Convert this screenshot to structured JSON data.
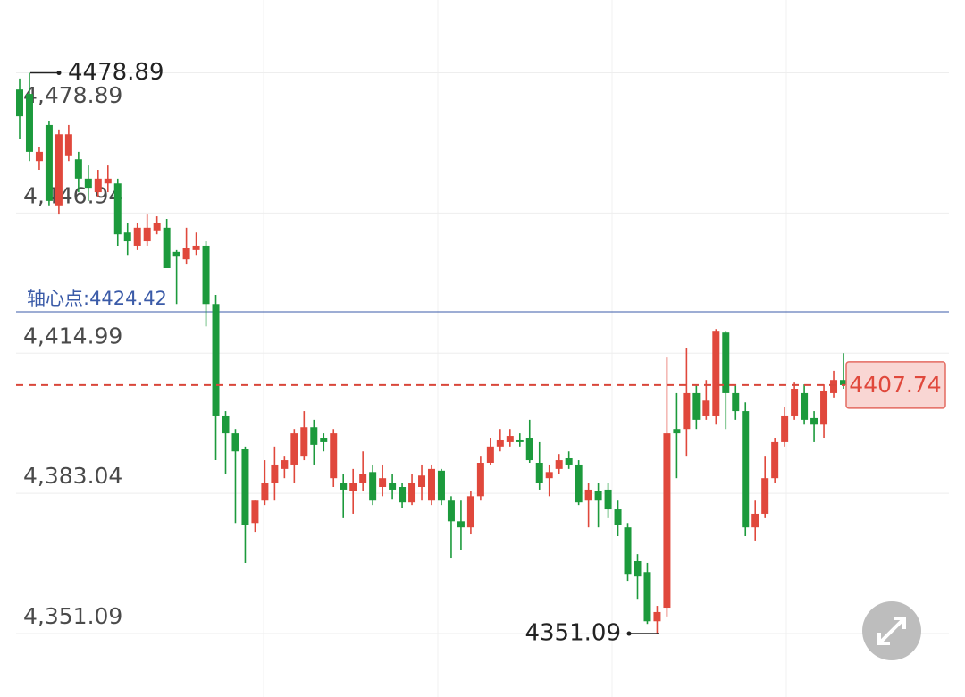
{
  "chart_data": {
    "type": "candlestick",
    "up_color": "#e0483c",
    "down_color": "#1c9a3c",
    "ylim": [
      4336.64,
      4495.5
    ],
    "yticks": [
      {
        "value": 4478.89,
        "label": "4,478.89"
      },
      {
        "value": 4446.94,
        "label": "4,446.94"
      },
      {
        "value": 4414.99,
        "label": "4,414.99"
      },
      {
        "value": 4383.04,
        "label": "4,383.04"
      },
      {
        "value": 4351.09,
        "label": "4,351.09"
      }
    ],
    "grid": true,
    "high": 4478.89,
    "low": 4351.09,
    "last": 4407.74,
    "pivot": {
      "value": 4424.42,
      "label": "轴心点:4424.42"
    },
    "series": {
      "open": [
        4475.1,
        4474.1,
        4458.8,
        4467.0,
        4448.7,
        4459.9,
        4459.2,
        4454.8,
        4451.7,
        4453.7,
        4453.7,
        4442.5,
        4439.5,
        4440.5,
        4443.0,
        4443.6,
        4438.1,
        4436.4,
        4438.5,
        4439.5,
        4426.2,
        4400.8,
        4396.7,
        4393.2,
        4376.3,
        4381.4,
        4385.5,
        4388.6,
        4389.6,
        4391.6,
        4398.1,
        4395.7,
        4386.5,
        4385.5,
        4383.5,
        4385.5,
        4387.9,
        4384.5,
        4385.5,
        4384.5,
        4381.0,
        4384.5,
        4381.4,
        4388.2,
        4381.4,
        4376.7,
        4375.3,
        4382.4,
        4390.0,
        4393.7,
        4394.7,
        4395.3,
        4395.7,
        4390.0,
        4386.5,
        4388.6,
        4391.2,
        4389.6,
        4381.4,
        4383.5,
        4383.9,
        4379.4,
        4375.3,
        4367.6,
        4365.1,
        4353.9,
        4357.0,
        4397.7,
        4397.7,
        4405.9,
        4400.8,
        4400.8,
        4419.7,
        4405.9,
        4401.8,
        4375.3,
        4378.4,
        4386.5,
        4394.7,
        4400.8,
        4405.9,
        4400.2,
        4398.7,
        4405.9,
        4408.9
      ],
      "high": [
        4477.6,
        4478.89,
        4461.9,
        4468.0,
        4466.0,
        4467.0,
        4460.9,
        4457.8,
        4456.8,
        4457.8,
        4454.8,
        4444.6,
        4444.6,
        4446.6,
        4446.2,
        4445.6,
        4438.5,
        4443.6,
        4442.5,
        4440.5,
        4428.3,
        4401.8,
        4397.7,
        4393.7,
        4381.4,
        4390.6,
        4393.7,
        4391.6,
        4397.7,
        4401.8,
        4399.8,
        4396.7,
        4397.7,
        4387.5,
        4388.6,
        4392.6,
        4389.6,
        4389.6,
        4387.5,
        4385.5,
        4387.5,
        4389.6,
        4389.6,
        4388.6,
        4382.4,
        4381.4,
        4383.5,
        4391.6,
        4395.7,
        4397.7,
        4397.7,
        4396.7,
        4399.8,
        4394.7,
        4389.6,
        4392.0,
        4392.6,
        4390.6,
        4385.5,
        4385.5,
        4385.5,
        4381.4,
        4376.3,
        4369.2,
        4367.2,
        4357.4,
        4414.0,
        4405.9,
        4416.1,
        4407.9,
        4408.9,
        4420.5,
        4420.1,
        4407.9,
        4403.8,
        4381.4,
        4391.6,
        4395.7,
        4402.8,
        4408.3,
        4407.9,
        4401.8,
        4407.9,
        4411.0,
        4415.0
      ],
      "low": [
        4463.9,
        4458.8,
        4456.8,
        4448.7,
        4446.6,
        4458.8,
        4451.7,
        4449.7,
        4450.7,
        4451.7,
        4439.5,
        4437.4,
        4438.5,
        4439.5,
        4442.1,
        4434.4,
        4426.2,
        4435.4,
        4437.4,
        4421.1,
        4390.6,
        4387.5,
        4376.3,
        4367.2,
        4374.3,
        4380.4,
        4381.4,
        4386.5,
        4385.5,
        4390.6,
        4389.6,
        4392.6,
        4384.5,
        4377.4,
        4378.4,
        4383.5,
        4380.4,
        4382.4,
        4381.8,
        4379.8,
        4380.4,
        4381.4,
        4380.4,
        4380.4,
        4368.2,
        4370.2,
        4373.7,
        4381.4,
        4389.6,
        4392.6,
        4393.7,
        4393.7,
        4390.0,
        4383.9,
        4382.4,
        4387.5,
        4388.6,
        4380.4,
        4375.3,
        4375.3,
        4377.4,
        4373.3,
        4363.1,
        4359.0,
        4353.3,
        4351.09,
        4355.0,
        4386.5,
        4391.6,
        4397.7,
        4399.8,
        4398.7,
        4397.7,
        4399.8,
        4373.3,
        4372.3,
        4377.4,
        4385.5,
        4393.7,
        4399.8,
        4398.7,
        4394.7,
        4395.7,
        4404.9,
        4406.9
      ],
      "close": [
        4469.0,
        4460.9,
        4460.9,
        4449.7,
        4464.9,
        4464.9,
        4454.8,
        4452.7,
        4454.8,
        4454.8,
        4442.1,
        4440.5,
        4443.6,
        4443.6,
        4444.6,
        4434.4,
        4437.0,
        4438.9,
        4439.5,
        4426.2,
        4400.8,
        4396.7,
        4392.6,
        4375.9,
        4381.4,
        4385.5,
        4389.6,
        4390.6,
        4396.7,
        4398.1,
        4394.1,
        4394.7,
        4396.7,
        4383.9,
        4385.5,
        4387.5,
        4381.4,
        4386.5,
        4383.9,
        4381.0,
        4385.5,
        4387.1,
        4388.6,
        4381.4,
        4376.7,
        4375.3,
        4382.4,
        4390.0,
        4393.7,
        4395.3,
        4396.1,
        4394.7,
        4390.6,
        4385.5,
        4387.9,
        4390.6,
        4389.6,
        4381.0,
        4383.9,
        4381.4,
        4379.4,
        4375.9,
        4364.7,
        4364.1,
        4353.9,
        4356.0,
        4396.7,
        4396.7,
        4405.9,
        4399.8,
        4404.2,
        4420.1,
        4405.9,
        4401.8,
        4375.3,
        4378.4,
        4386.5,
        4394.7,
        4400.8,
        4406.9,
        4399.8,
        4398.7,
        4406.3,
        4408.9,
        4407.74
      ]
    }
  }
}
